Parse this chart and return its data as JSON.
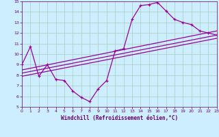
{
  "xlabel": "Windchill (Refroidissement éolien,°C)",
  "bg_color": "#cceeff",
  "line_color": "#990099",
  "grid_color": "#aaccbb",
  "xlim": [
    0,
    23
  ],
  "ylim": [
    5,
    15
  ],
  "xticks": [
    0,
    1,
    2,
    3,
    4,
    5,
    6,
    7,
    8,
    9,
    10,
    11,
    12,
    13,
    14,
    15,
    16,
    17,
    18,
    19,
    20,
    21,
    22,
    23
  ],
  "yticks": [
    5,
    6,
    7,
    8,
    9,
    10,
    11,
    12,
    13,
    14,
    15
  ],
  "line1_x": [
    0,
    1,
    2,
    3,
    4,
    5,
    6,
    7,
    8,
    9,
    10,
    11,
    12,
    13,
    14,
    15,
    16,
    17,
    18,
    19,
    20,
    21,
    22,
    23
  ],
  "line1_y": [
    9.0,
    10.7,
    7.9,
    9.0,
    7.6,
    7.5,
    6.5,
    5.9,
    5.5,
    6.7,
    7.5,
    10.3,
    10.5,
    13.3,
    14.6,
    14.7,
    14.9,
    14.1,
    13.3,
    13.0,
    12.8,
    12.2,
    12.0,
    11.8
  ],
  "line2_x": [
    0,
    23
  ],
  "line2_y": [
    8.5,
    12.2
  ],
  "line3_x": [
    0,
    23
  ],
  "line3_y": [
    8.2,
    11.8
  ],
  "line4_x": [
    0,
    23
  ],
  "line4_y": [
    7.9,
    11.5
  ]
}
